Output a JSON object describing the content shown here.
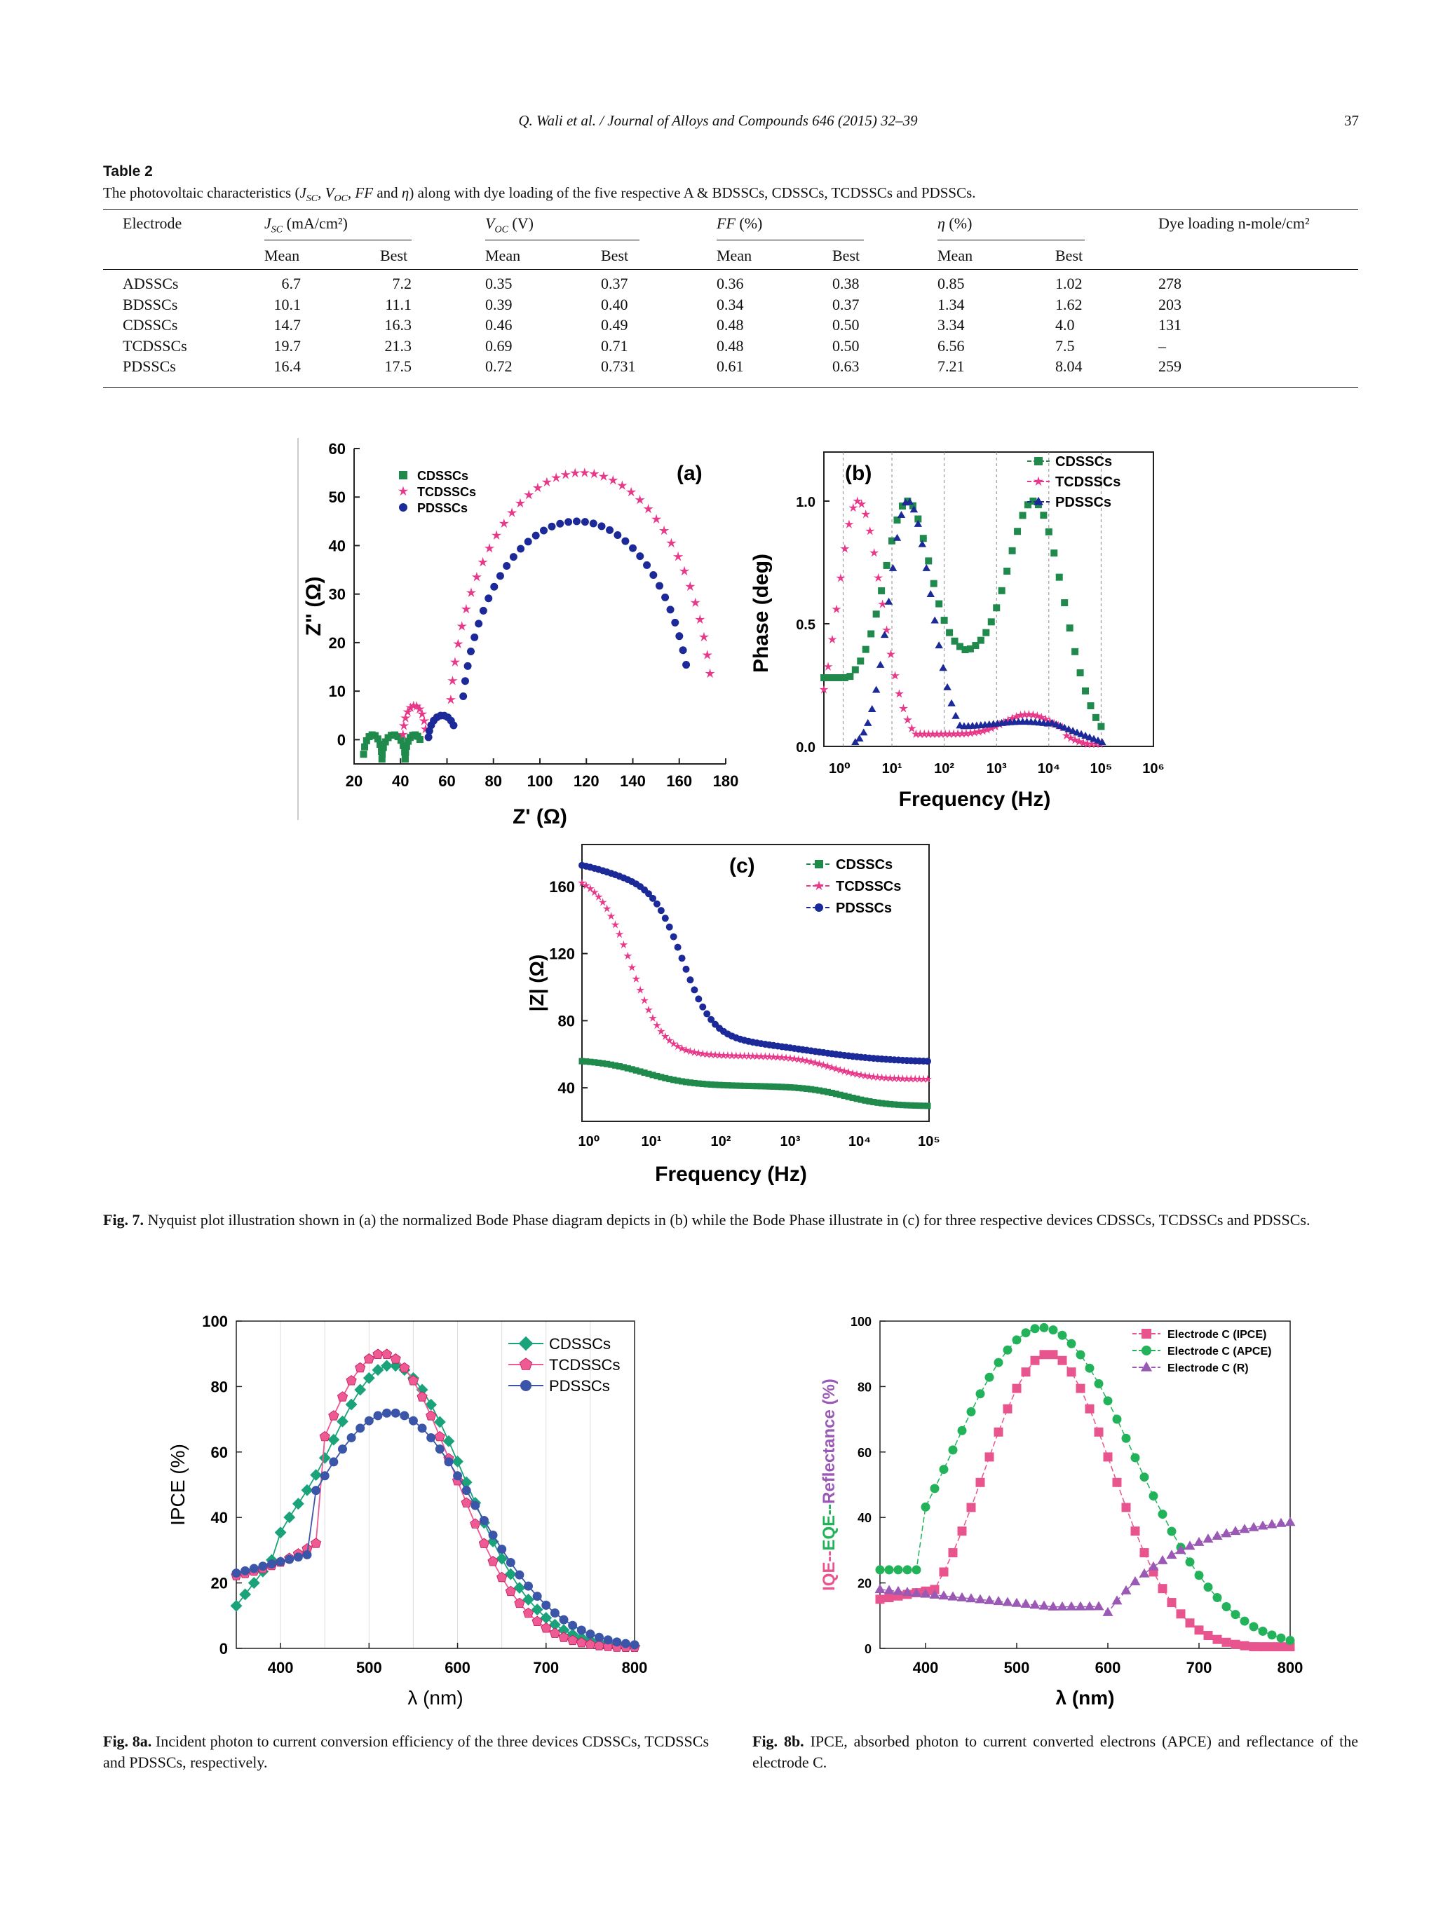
{
  "header": {
    "citation": "Q. Wali et al. / Journal of Alloys and Compounds 646 (2015) 32–39",
    "page": "37"
  },
  "table": {
    "label": "Table 2",
    "caption": "The photovoltaic characteristics (J_SC, V_OC, FF and η) along with dye loading of the five respective A & BDSSCs, CDSSCs, TCDSSCs and PDSSCs.",
    "headers": [
      "Electrode",
      "J_SC (mA/cm²)",
      "V_OC (V)",
      "FF (%)",
      "η (%)",
      "Dye loading n-mole/cm²"
    ],
    "subheaders": [
      "Mean",
      "Best"
    ],
    "rows": [
      [
        "ADSSCs",
        "6.7",
        "7.2",
        "0.35",
        "0.37",
        "0.36",
        "0.38",
        "0.85",
        "1.02",
        "278"
      ],
      [
        "BDSSCs",
        "10.1",
        "11.1",
        "0.39",
        "0.40",
        "0.34",
        "0.37",
        "1.34",
        "1.62",
        "203"
      ],
      [
        "CDSSCs",
        "14.7",
        "16.3",
        "0.46",
        "0.49",
        "0.48",
        "0.50",
        "3.34",
        "4.0",
        "131"
      ],
      [
        "TCDSSCs",
        "19.7",
        "21.3",
        "0.69",
        "0.71",
        "0.48",
        "0.50",
        "6.56",
        "7.5",
        "–"
      ],
      [
        "PDSSCs",
        "16.4",
        "17.5",
        "0.72",
        "0.731",
        "0.61",
        "0.63",
        "7.21",
        "8.04",
        "259"
      ]
    ]
  },
  "chart_data": [
    {
      "id": "a",
      "type": "scatter",
      "panel_label": "(a)",
      "xlabel": "Z' (Ω)",
      "ylabel": "Z\" (Ω)",
      "xlim": [
        20,
        180
      ],
      "ylim": [
        -5,
        60
      ],
      "xticks": [
        "20",
        "40",
        "60",
        "80",
        "100",
        "120",
        "140",
        "160",
        "180"
      ],
      "yticks": [
        "0",
        "10",
        "20",
        "30",
        "40",
        "50",
        "60"
      ],
      "legend": [
        "CDSSCs",
        "TCDSSCs",
        "PDSSCs"
      ],
      "legend_position": "top-left"
    },
    {
      "id": "b",
      "type": "scatter",
      "panel_label": "(b)",
      "xlabel": "Frequency (Hz)",
      "ylabel": "Phase (deg)",
      "xscale": "log",
      "xlim": [
        0.5,
        1000000
      ],
      "ylim": [
        0,
        1.2
      ],
      "xticks": [
        "10⁰",
        "10¹",
        "10²",
        "10³",
        "10⁴",
        "10⁵",
        "10⁶"
      ],
      "yticks": [
        "0.0",
        "0.5",
        "1.0"
      ],
      "legend": [
        "CDSSCs",
        "TCDSSCs",
        "PDSSCs"
      ],
      "legend_position": "top-right"
    },
    {
      "id": "c",
      "type": "scatter",
      "panel_label": "(c)",
      "xlabel": "Frequency (Hz)",
      "ylabel": "|Z| (Ω)",
      "xscale": "log",
      "xlim": [
        1,
        100000
      ],
      "ylim": [
        20,
        185
      ],
      "xticks": [
        "10⁰",
        "10¹",
        "10²",
        "10³",
        "10⁴",
        "10⁵"
      ],
      "yticks": [
        "40",
        "80",
        "120",
        "160"
      ],
      "legend": [
        "CDSSCs",
        "TCDSSCs",
        "PDSSCs"
      ],
      "legend_position": "top-right"
    },
    {
      "id": "8a",
      "type": "line",
      "xlabel": "λ (nm)",
      "ylabel": "IPCE (%)",
      "xlim": [
        350,
        800
      ],
      "ylim": [
        0,
        100
      ],
      "xticks": [
        "400",
        "500",
        "600",
        "700",
        "800"
      ],
      "yticks": [
        "0",
        "20",
        "40",
        "60",
        "80",
        "100"
      ],
      "legend": [
        "CDSSCs",
        "TCDSSCs",
        "PDSSCs"
      ],
      "legend_position": "top-right"
    },
    {
      "id": "8b",
      "type": "line",
      "xlabel": "λ (nm)",
      "ylabel": "IQE--EQE--Reflectance (%)",
      "xlim": [
        350,
        800
      ],
      "ylim": [
        0,
        100
      ],
      "xticks": [
        "400",
        "500",
        "600",
        "700",
        "800"
      ],
      "yticks": [
        "0",
        "20",
        "40",
        "60",
        "80",
        "100"
      ],
      "legend": [
        "Electrode C (IPCE)",
        "Electrode C (APCE)",
        "Electrode C (R)"
      ],
      "legend_position": "top-right"
    }
  ],
  "captions": {
    "fig7_label": "Fig. 7.",
    "fig7_text": "Nyquist plot illustration shown in (a) the normalized Bode Phase diagram depicts in (b) while the Bode Phase illustrate in (c) for three respective devices CDSSCs, TCDSSCs and PDSSCs.",
    "fig8a_label": "Fig. 8a.",
    "fig8a_text": "Incident photon to current conversion efficiency of the three devices CDSSCs, TCDSSCs and PDSSCs, respectively.",
    "fig8b_label": "Fig. 8b.",
    "fig8b_text": "IPCE, absorbed photon to current converted electrons (APCE) and reflectance of the electrode C."
  },
  "colors": {
    "green": "#1f8a4c",
    "pink": "#e8388a",
    "navy": "#1c2a99",
    "teal": "#1aa37a",
    "pink2": "#ee5a93",
    "blue2": "#3b56a8",
    "pink3": "#e8558e",
    "green3": "#22b35a",
    "purple": "#9b59b6"
  }
}
